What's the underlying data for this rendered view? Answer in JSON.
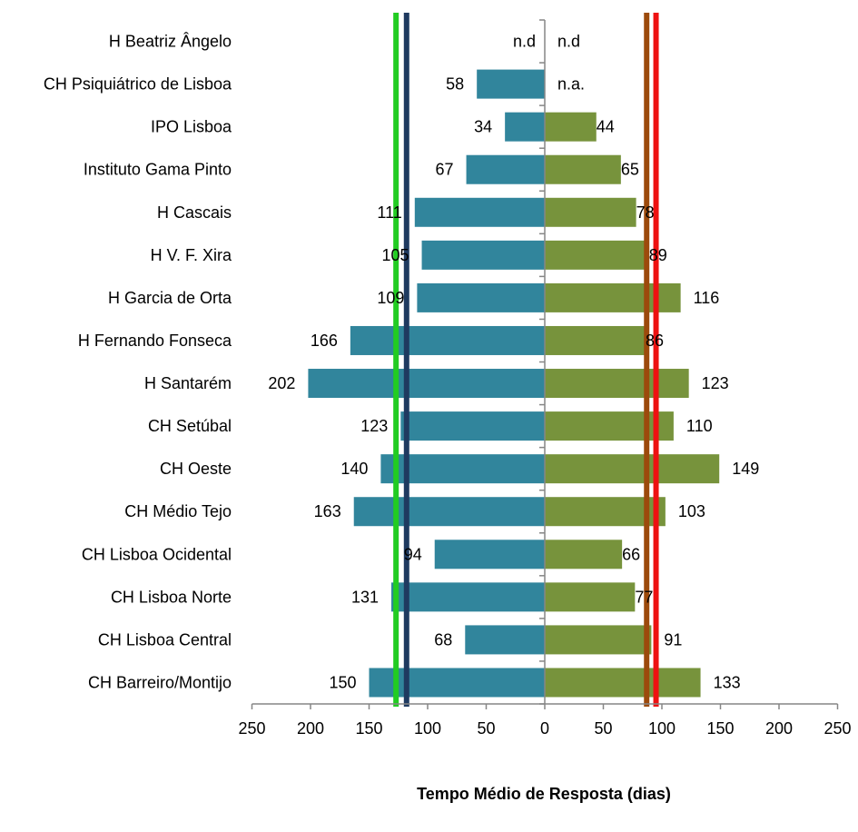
{
  "chart_data": {
    "type": "bar",
    "orientation": "horizontal-diverging",
    "categories": [
      "H Beatriz Ângelo",
      "CH Psiquiátrico de Lisboa",
      "IPO Lisboa",
      "Instituto Gama Pinto",
      "H Cascais",
      "H V. F. Xira",
      "H Garcia de Orta ",
      "H Fernando Fonseca",
      "H Santarém",
      "CH Setúbal",
      "CH Oeste",
      "CH Médio Tejo ",
      "CH Lisboa Ocidental",
      "CH Lisboa Norte",
      "CH Lisboa Central",
      "CH Barreiro/Montijo"
    ],
    "series": [
      {
        "side": "left",
        "color": "#31859c",
        "values": [
          null,
          58,
          34,
          67,
          111,
          105,
          109,
          166,
          202,
          123,
          140,
          163,
          94,
          131,
          68,
          150
        ],
        "labels": [
          "n.d",
          "58",
          "34",
          "67",
          "111",
          "105",
          "109",
          "166",
          "202",
          "123",
          "140",
          "163",
          "94",
          "131",
          "68",
          "150"
        ]
      },
      {
        "side": "right",
        "color": "#77933c",
        "values": [
          null,
          null,
          44,
          65,
          78,
          89,
          116,
          86,
          123,
          110,
          149,
          103,
          66,
          77,
          91,
          133
        ],
        "labels": [
          "n.d",
          "n.a.",
          "44",
          "65",
          "78",
          "89",
          "116",
          "86",
          "123",
          "110",
          "149",
          "103",
          "66",
          "77",
          "91",
          "133"
        ]
      }
    ],
    "reference_lines": [
      {
        "side": "left",
        "value": 127,
        "color": "#22cc22"
      },
      {
        "side": "left",
        "value": 118,
        "color": "#1f3a60"
      },
      {
        "side": "right",
        "value": 87,
        "color": "#9c4a0c"
      },
      {
        "side": "right",
        "value": 95,
        "color": "#ee1111"
      }
    ],
    "xlim": [
      -250,
      250
    ],
    "x_ticks": [
      -250,
      -200,
      -150,
      -100,
      -50,
      0,
      50,
      100,
      150,
      200,
      250
    ],
    "x_tick_labels": [
      "250",
      "200",
      "150",
      "100",
      "50",
      "0",
      "50",
      "100",
      "150",
      "200",
      "250"
    ],
    "xlabel": "Tempo Médio de Resposta (dias)",
    "grid": false,
    "legend": "none"
  }
}
